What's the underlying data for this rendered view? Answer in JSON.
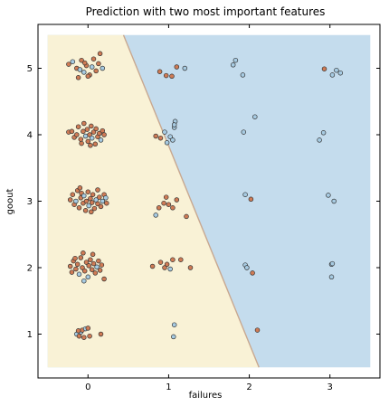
{
  "chart_data": {
    "type": "scatter",
    "title": "Prediction with two most important features",
    "xlabel": "failures",
    "ylabel": "goout",
    "xlim": [
      -0.5,
      3.5
    ],
    "ylim": [
      0.5,
      5.5
    ],
    "xticks": [
      "0",
      "1",
      "2",
      "3"
    ],
    "yticks": [
      "1",
      "2",
      "3",
      "4",
      "5"
    ],
    "grid": false,
    "colors": {
      "region_a": "#f9f2d6",
      "region_b": "#c4dced",
      "boundary": "#c8a890",
      "class_a_point": "#cf7b55",
      "class_b_point": "#a7cbe2",
      "point_edge": "#333333"
    },
    "decision_boundary": {
      "top": [
        0.44,
        5.5
      ],
      "bottom": [
        2.12,
        0.5
      ]
    },
    "points": [
      {
        "x": -0.24,
        "y": 5.06,
        "c": "a"
      },
      {
        "x": -0.19,
        "y": 5.1,
        "c": "b"
      },
      {
        "x": -0.14,
        "y": 5.0,
        "c": "a"
      },
      {
        "x": -0.1,
        "y": 4.98,
        "c": "b"
      },
      {
        "x": -0.08,
        "y": 5.12,
        "c": "a"
      },
      {
        "x": -0.05,
        "y": 4.94,
        "c": "b"
      },
      {
        "x": -0.02,
        "y": 5.04,
        "c": "a"
      },
      {
        "x": 0.02,
        "y": 4.9,
        "c": "a"
      },
      {
        "x": 0.05,
        "y": 5.02,
        "c": "b"
      },
      {
        "x": 0.07,
        "y": 5.14,
        "c": "a"
      },
      {
        "x": 0.1,
        "y": 4.96,
        "c": "a"
      },
      {
        "x": 0.13,
        "y": 5.07,
        "c": "a"
      },
      {
        "x": 0.15,
        "y": 5.22,
        "c": "a"
      },
      {
        "x": 0.18,
        "y": 5.0,
        "c": "b"
      },
      {
        "x": -0.12,
        "y": 4.86,
        "c": "a"
      },
      {
        "x": 0.0,
        "y": 4.88,
        "c": "a"
      },
      {
        "x": -0.04,
        "y": 5.08,
        "c": "a"
      },
      {
        "x": 0.89,
        "y": 4.95,
        "c": "a"
      },
      {
        "x": 0.97,
        "y": 4.89,
        "c": "a"
      },
      {
        "x": 1.04,
        "y": 4.88,
        "c": "a"
      },
      {
        "x": 1.1,
        "y": 5.02,
        "c": "a"
      },
      {
        "x": 1.2,
        "y": 5.0,
        "c": "b"
      },
      {
        "x": 1.8,
        "y": 5.05,
        "c": "b"
      },
      {
        "x": 1.83,
        "y": 5.12,
        "c": "b"
      },
      {
        "x": 1.92,
        "y": 4.9,
        "c": "b"
      },
      {
        "x": 2.93,
        "y": 4.99,
        "c": "a"
      },
      {
        "x": 3.03,
        "y": 4.9,
        "c": "b"
      },
      {
        "x": 3.08,
        "y": 4.97,
        "c": "b"
      },
      {
        "x": 3.13,
        "y": 4.93,
        "c": "b"
      },
      {
        "x": -0.24,
        "y": 4.04,
        "c": "a"
      },
      {
        "x": -0.2,
        "y": 4.05,
        "c": "a"
      },
      {
        "x": -0.17,
        "y": 3.96,
        "c": "a"
      },
      {
        "x": -0.14,
        "y": 4.0,
        "c": "a"
      },
      {
        "x": -0.12,
        "y": 4.12,
        "c": "a"
      },
      {
        "x": -0.09,
        "y": 3.93,
        "c": "a"
      },
      {
        "x": -0.06,
        "y": 4.05,
        "c": "a"
      },
      {
        "x": -0.05,
        "y": 4.17,
        "c": "a"
      },
      {
        "x": -0.03,
        "y": 3.98,
        "c": "b"
      },
      {
        "x": -0.01,
        "y": 4.08,
        "c": "a"
      },
      {
        "x": 0.0,
        "y": 3.9,
        "c": "a"
      },
      {
        "x": 0.02,
        "y": 4.0,
        "c": "a"
      },
      {
        "x": 0.04,
        "y": 4.13,
        "c": "a"
      },
      {
        "x": 0.05,
        "y": 3.95,
        "c": "b"
      },
      {
        "x": 0.07,
        "y": 4.04,
        "c": "a"
      },
      {
        "x": 0.09,
        "y": 3.86,
        "c": "a"
      },
      {
        "x": 0.1,
        "y": 4.09,
        "c": "a"
      },
      {
        "x": 0.12,
        "y": 3.97,
        "c": "a"
      },
      {
        "x": 0.14,
        "y": 4.02,
        "c": "a"
      },
      {
        "x": 0.16,
        "y": 3.92,
        "c": "b"
      },
      {
        "x": 0.18,
        "y": 4.06,
        "c": "a"
      },
      {
        "x": 0.2,
        "y": 4.0,
        "c": "a"
      },
      {
        "x": -0.08,
        "y": 3.87,
        "c": "a"
      },
      {
        "x": 0.03,
        "y": 3.84,
        "c": "a"
      },
      {
        "x": 0.84,
        "y": 3.98,
        "c": "a"
      },
      {
        "x": 0.9,
        "y": 3.95,
        "c": "a"
      },
      {
        "x": 0.95,
        "y": 4.04,
        "c": "b"
      },
      {
        "x": 0.98,
        "y": 3.88,
        "c": "b"
      },
      {
        "x": 1.02,
        "y": 3.97,
        "c": "b"
      },
      {
        "x": 1.05,
        "y": 3.92,
        "c": "b"
      },
      {
        "x": 1.07,
        "y": 4.11,
        "c": "b"
      },
      {
        "x": 1.08,
        "y": 4.2,
        "c": "b"
      },
      {
        "x": 1.07,
        "y": 4.15,
        "c": "b"
      },
      {
        "x": 1.93,
        "y": 4.04,
        "c": "b"
      },
      {
        "x": 2.07,
        "y": 4.27,
        "c": "b"
      },
      {
        "x": 2.87,
        "y": 3.92,
        "c": "b"
      },
      {
        "x": 2.92,
        "y": 4.03,
        "c": "b"
      },
      {
        "x": -0.22,
        "y": 3.02,
        "c": "a"
      },
      {
        "x": -0.19,
        "y": 3.1,
        "c": "a"
      },
      {
        "x": -0.17,
        "y": 2.95,
        "c": "a"
      },
      {
        "x": -0.15,
        "y": 3.0,
        "c": "b"
      },
      {
        "x": -0.13,
        "y": 3.16,
        "c": "a"
      },
      {
        "x": -0.11,
        "y": 2.9,
        "c": "a"
      },
      {
        "x": -0.09,
        "y": 3.05,
        "c": "a"
      },
      {
        "x": -0.08,
        "y": 3.12,
        "c": "a"
      },
      {
        "x": -0.06,
        "y": 2.97,
        "c": "a"
      },
      {
        "x": -0.05,
        "y": 3.08,
        "c": "b"
      },
      {
        "x": -0.03,
        "y": 2.86,
        "c": "a"
      },
      {
        "x": -0.02,
        "y": 3.0,
        "c": "a"
      },
      {
        "x": 0.0,
        "y": 3.14,
        "c": "a"
      },
      {
        "x": 0.01,
        "y": 2.93,
        "c": "b"
      },
      {
        "x": 0.03,
        "y": 3.04,
        "c": "a"
      },
      {
        "x": 0.05,
        "y": 2.98,
        "c": "a"
      },
      {
        "x": 0.06,
        "y": 3.1,
        "c": "a"
      },
      {
        "x": 0.08,
        "y": 2.89,
        "c": "a"
      },
      {
        "x": 0.1,
        "y": 3.02,
        "c": "b"
      },
      {
        "x": 0.12,
        "y": 2.96,
        "c": "a"
      },
      {
        "x": 0.14,
        "y": 3.06,
        "c": "a"
      },
      {
        "x": 0.16,
        "y": 2.92,
        "c": "a"
      },
      {
        "x": 0.18,
        "y": 3.0,
        "c": "b"
      },
      {
        "x": 0.2,
        "y": 3.1,
        "c": "a"
      },
      {
        "x": -0.1,
        "y": 3.2,
        "c": "a"
      },
      {
        "x": 0.04,
        "y": 2.84,
        "c": "a"
      },
      {
        "x": 0.22,
        "y": 3.05,
        "c": "b"
      },
      {
        "x": 0.23,
        "y": 2.97,
        "c": "a"
      },
      {
        "x": 0.12,
        "y": 3.17,
        "c": "a"
      },
      {
        "x": 0.84,
        "y": 2.79,
        "c": "b"
      },
      {
        "x": 0.88,
        "y": 2.9,
        "c": "a"
      },
      {
        "x": 0.94,
        "y": 2.97,
        "c": "a"
      },
      {
        "x": 0.97,
        "y": 3.06,
        "c": "a"
      },
      {
        "x": 1.0,
        "y": 2.95,
        "c": "a"
      },
      {
        "x": 1.05,
        "y": 2.9,
        "c": "a"
      },
      {
        "x": 1.1,
        "y": 3.02,
        "c": "a"
      },
      {
        "x": 1.22,
        "y": 2.77,
        "c": "a"
      },
      {
        "x": 1.95,
        "y": 3.1,
        "c": "b"
      },
      {
        "x": 2.02,
        "y": 3.03,
        "c": "a"
      },
      {
        "x": 2.98,
        "y": 3.09,
        "c": "b"
      },
      {
        "x": 3.05,
        "y": 3.0,
        "c": "b"
      },
      {
        "x": -0.22,
        "y": 2.02,
        "c": "a"
      },
      {
        "x": -0.2,
        "y": 1.93,
        "c": "a"
      },
      {
        "x": -0.18,
        "y": 2.1,
        "c": "a"
      },
      {
        "x": -0.15,
        "y": 1.98,
        "c": "a"
      },
      {
        "x": -0.13,
        "y": 2.05,
        "c": "a"
      },
      {
        "x": -0.11,
        "y": 1.9,
        "c": "b"
      },
      {
        "x": -0.09,
        "y": 2.15,
        "c": "a"
      },
      {
        "x": -0.07,
        "y": 2.0,
        "c": "a"
      },
      {
        "x": -0.06,
        "y": 2.22,
        "c": "a"
      },
      {
        "x": -0.04,
        "y": 1.95,
        "c": "a"
      },
      {
        "x": -0.02,
        "y": 2.08,
        "c": "a"
      },
      {
        "x": 0.0,
        "y": 1.86,
        "c": "b"
      },
      {
        "x": 0.01,
        "y": 2.03,
        "c": "a"
      },
      {
        "x": 0.03,
        "y": 2.12,
        "c": "a"
      },
      {
        "x": 0.05,
        "y": 1.97,
        "c": "a"
      },
      {
        "x": 0.07,
        "y": 2.06,
        "c": "a"
      },
      {
        "x": 0.09,
        "y": 1.92,
        "c": "a"
      },
      {
        "x": 0.11,
        "y": 2.01,
        "c": "b"
      },
      {
        "x": 0.13,
        "y": 2.1,
        "c": "a"
      },
      {
        "x": 0.15,
        "y": 1.96,
        "c": "a"
      },
      {
        "x": 0.17,
        "y": 2.04,
        "c": "a"
      },
      {
        "x": 0.2,
        "y": 1.83,
        "c": "a"
      },
      {
        "x": -0.05,
        "y": 1.8,
        "c": "b"
      },
      {
        "x": 0.06,
        "y": 2.2,
        "c": "a"
      },
      {
        "x": -0.16,
        "y": 2.14,
        "c": "a"
      },
      {
        "x": 0.8,
        "y": 2.02,
        "c": "a"
      },
      {
        "x": 0.9,
        "y": 2.08,
        "c": "a"
      },
      {
        "x": 0.95,
        "y": 2.0,
        "c": "a"
      },
      {
        "x": 0.98,
        "y": 2.05,
        "c": "a"
      },
      {
        "x": 1.02,
        "y": 1.98,
        "c": "b"
      },
      {
        "x": 1.05,
        "y": 2.12,
        "c": "a"
      },
      {
        "x": 1.15,
        "y": 2.12,
        "c": "a"
      },
      {
        "x": 1.27,
        "y": 2.0,
        "c": "a"
      },
      {
        "x": 1.95,
        "y": 2.04,
        "c": "b"
      },
      {
        "x": 1.97,
        "y": 2.0,
        "c": "b"
      },
      {
        "x": 2.04,
        "y": 1.92,
        "c": "a"
      },
      {
        "x": 3.02,
        "y": 2.05,
        "c": "b"
      },
      {
        "x": 3.03,
        "y": 2.06,
        "c": "b"
      },
      {
        "x": 3.02,
        "y": 1.86,
        "c": "b"
      },
      {
        "x": -0.14,
        "y": 1.0,
        "c": "b"
      },
      {
        "x": -0.11,
        "y": 0.97,
        "c": "a"
      },
      {
        "x": -0.09,
        "y": 1.03,
        "c": "b"
      },
      {
        "x": -0.07,
        "y": 1.06,
        "c": "a"
      },
      {
        "x": -0.05,
        "y": 0.95,
        "c": "a"
      },
      {
        "x": -0.03,
        "y": 1.08,
        "c": "b"
      },
      {
        "x": 0.0,
        "y": 1.09,
        "c": "a"
      },
      {
        "x": 0.02,
        "y": 0.97,
        "c": "a"
      },
      {
        "x": -0.12,
        "y": 1.05,
        "c": "a"
      },
      {
        "x": 0.16,
        "y": 1.0,
        "c": "a"
      },
      {
        "x": 1.07,
        "y": 1.14,
        "c": "b"
      },
      {
        "x": 1.06,
        "y": 0.96,
        "c": "b"
      },
      {
        "x": 2.1,
        "y": 1.06,
        "c": "a"
      }
    ]
  }
}
